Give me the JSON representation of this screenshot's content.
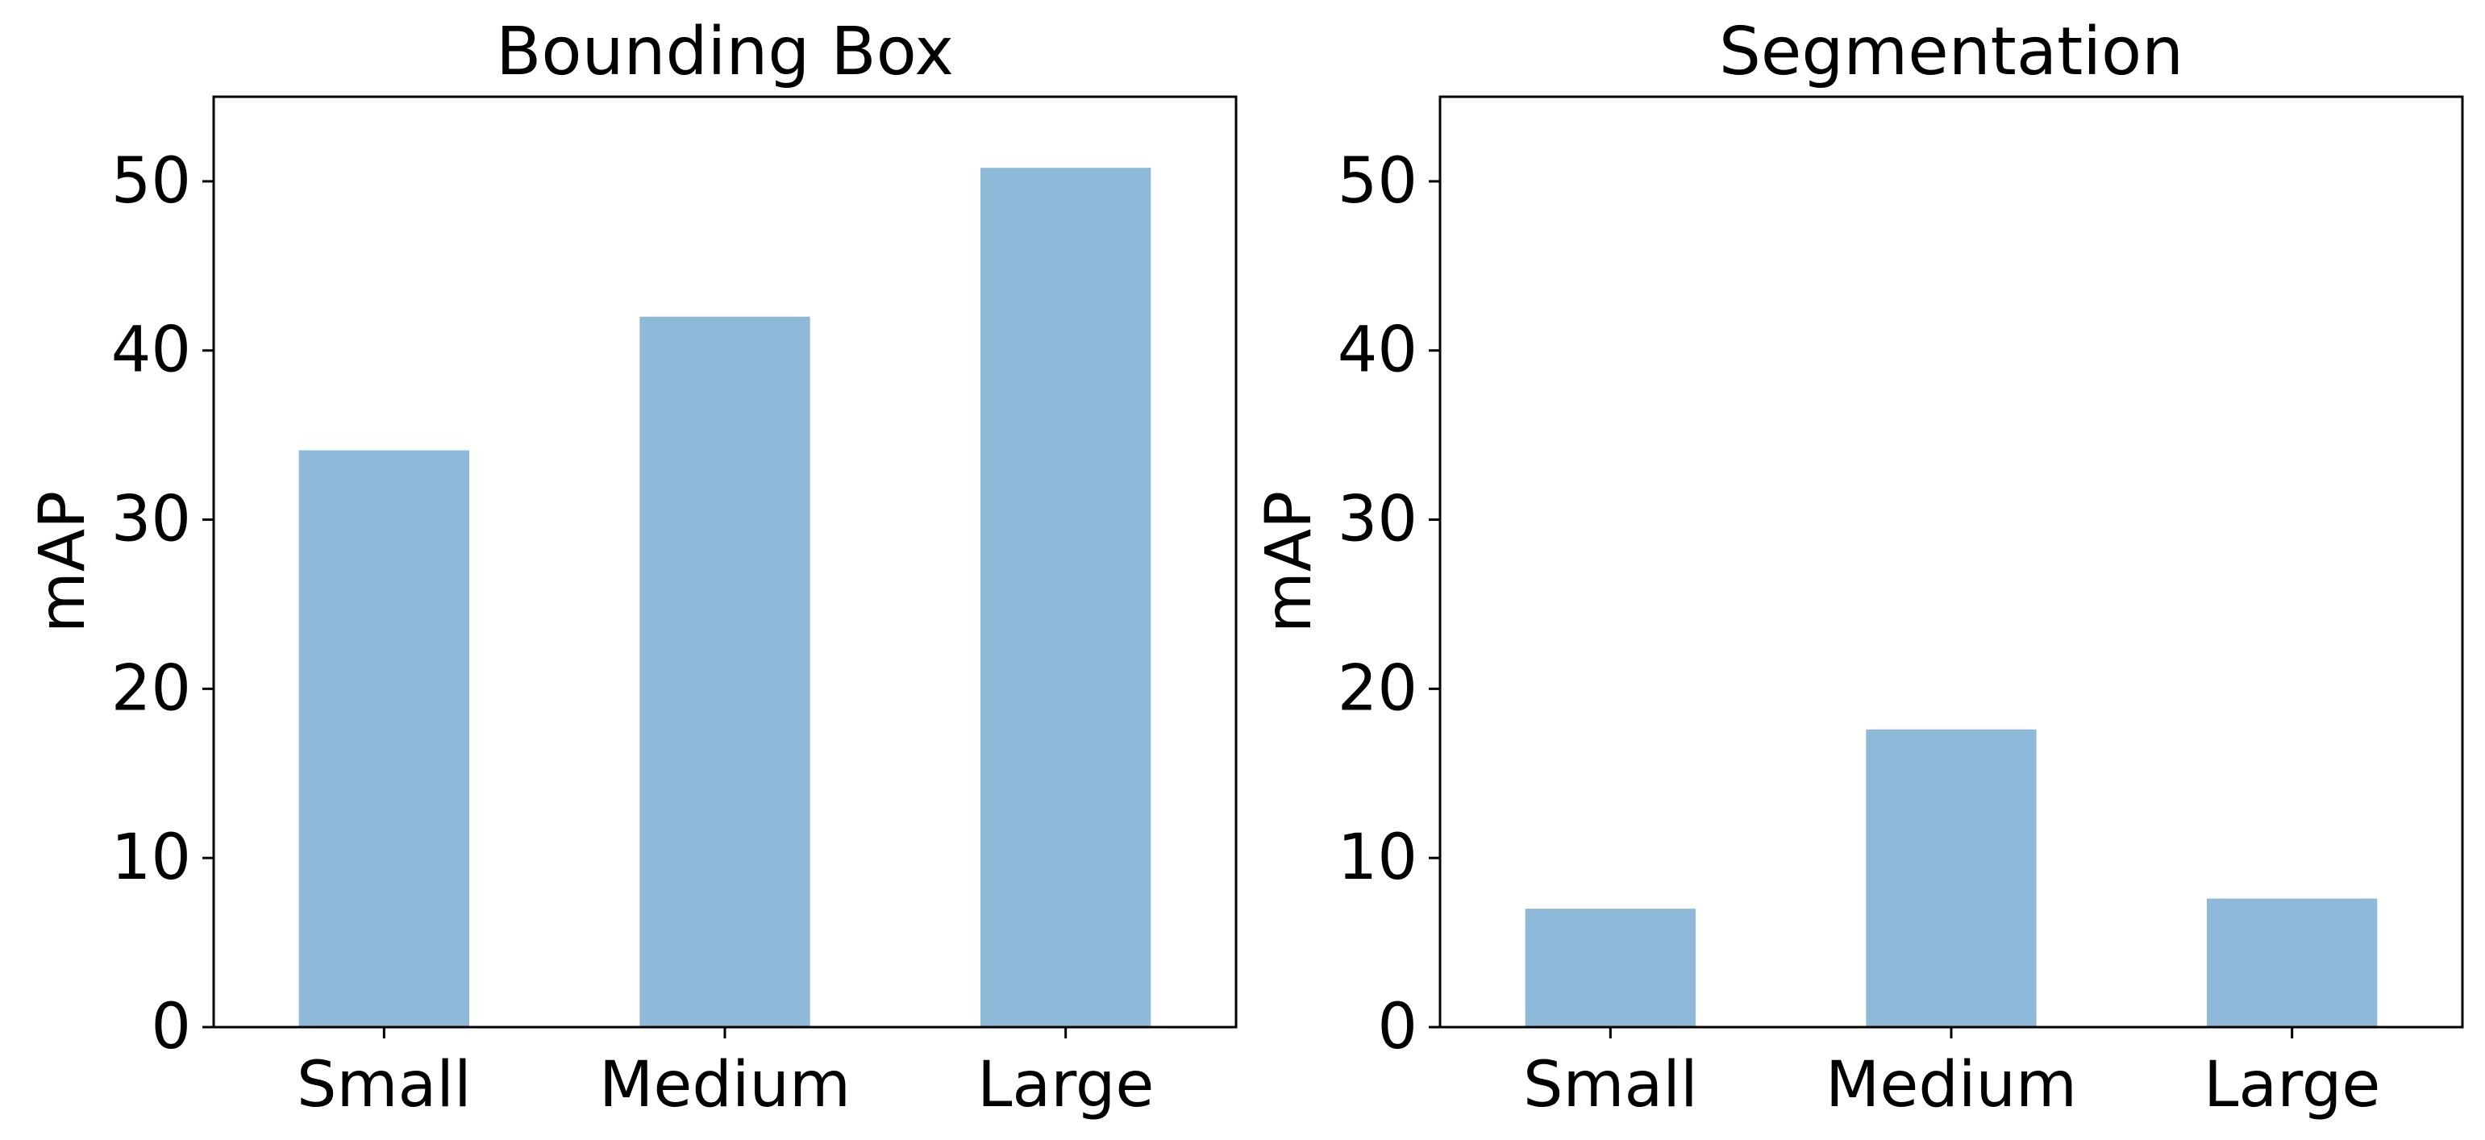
{
  "chart_data": [
    {
      "type": "bar",
      "title": "Bounding Box",
      "xlabel": "",
      "ylabel": "mAP",
      "categories": [
        "Small",
        "Medium",
        "Large"
      ],
      "values": [
        34.1,
        42.0,
        50.8
      ],
      "ylim": [
        0,
        55
      ],
      "yticks": [
        0,
        10,
        20,
        30,
        40,
        50
      ],
      "bar_color": "#8fb9d8",
      "grid": false
    },
    {
      "type": "bar",
      "title": "Segmentation",
      "xlabel": "",
      "ylabel": "mAP",
      "categories": [
        "Small",
        "Medium",
        "Large"
      ],
      "values": [
        7.0,
        17.6,
        7.6
      ],
      "ylim": [
        0,
        55
      ],
      "yticks": [
        0,
        10,
        20,
        30,
        40,
        50
      ],
      "bar_color": "#8fb9d8",
      "grid": false
    }
  ]
}
